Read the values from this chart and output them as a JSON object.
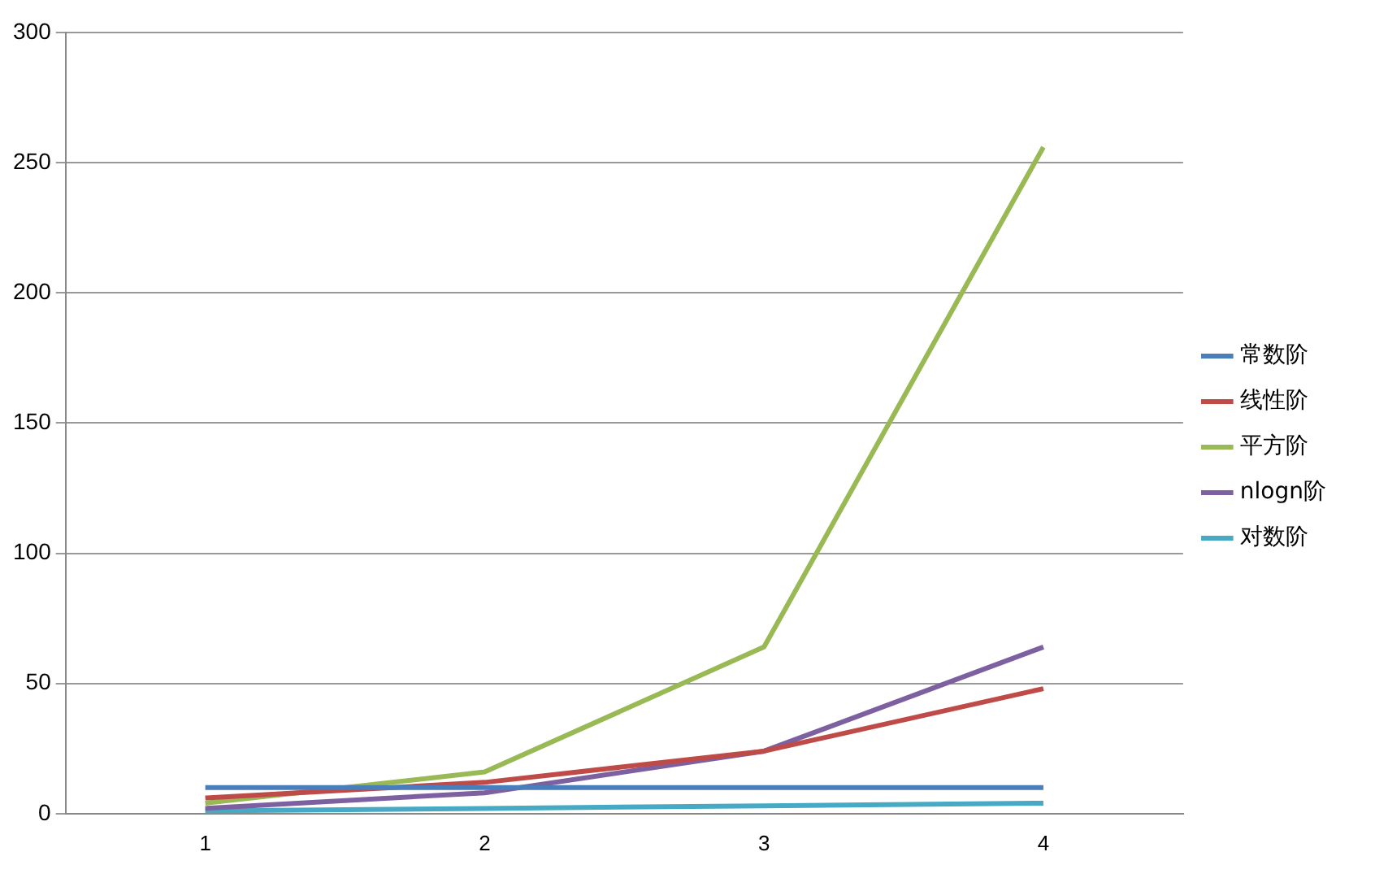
{
  "chart_data": {
    "type": "line",
    "categories": [
      "1",
      "2",
      "3",
      "4"
    ],
    "series": [
      {
        "name": "常数阶",
        "color": "#4a7ebb",
        "values": [
          10,
          10,
          10,
          10
        ]
      },
      {
        "name": "线性阶",
        "color": "#be4b48",
        "values": [
          6,
          12,
          24,
          48
        ]
      },
      {
        "name": "平方阶",
        "color": "#98b954",
        "values": [
          4,
          16,
          64,
          256
        ]
      },
      {
        "name": "nlogn阶",
        "color": "#7d60a0",
        "values": [
          2,
          8,
          24,
          64
        ]
      },
      {
        "name": "对数阶",
        "color": "#46aac5",
        "values": [
          1,
          2,
          3,
          4
        ]
      }
    ],
    "ylim": [
      0,
      300
    ],
    "yticks": [
      0,
      50,
      100,
      150,
      200,
      250,
      300
    ],
    "grid": "y",
    "legend": "right",
    "marker": "none",
    "line_style": "solid"
  }
}
